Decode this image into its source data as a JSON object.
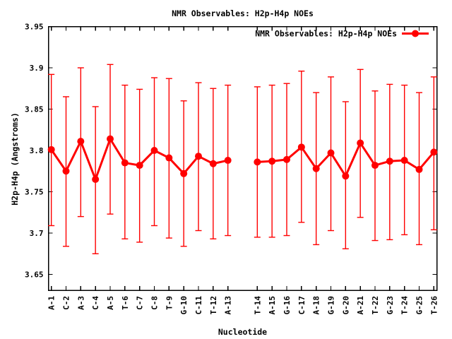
{
  "title": "NMR Observables: H2p-H4p NOEs",
  "axes": {
    "xlabel": "Nucleotide",
    "ylabel": "H2p-H4p (Angstroms)"
  },
  "legend": {
    "label": "NMR Observables: H2p-H4p NOEs",
    "position": "top-right-inside",
    "marker": "filled-circle-on-line",
    "color": "#ff0000"
  },
  "colors": {
    "series": "#ff0000",
    "axis": "#000000",
    "background": "#ffffff"
  },
  "chart_data": {
    "type": "line",
    "title": "NMR Observables: H2p-H4p NOEs",
    "xlabel": "Nucleotide",
    "ylabel": "H2p-H4p (Angstroms)",
    "series_name": "NMR Observables: H2p-H4p NOEs",
    "series_color": "#ff0000",
    "grid": false,
    "error_bars": true,
    "legend_position": "top-right-inside",
    "ylim": [
      3.6308,
      3.95
    ],
    "yticks": [
      3.95,
      3.9,
      3.85,
      3.8,
      3.75,
      3.7,
      3.65
    ],
    "ytick_labels": [
      "3.95",
      "3.9",
      "3.85",
      "3.8",
      "3.75",
      "3.7",
      "3.65"
    ],
    "categories": [
      "A-1",
      "C-2",
      "A-3",
      "C-4",
      "A-5",
      "T-6",
      "C-7",
      "C-8",
      "T-9",
      "G-10",
      "C-11",
      "T-12",
      "A-13",
      "T-14",
      "A-15",
      "G-16",
      "C-17",
      "A-18",
      "G-19",
      "G-20",
      "A-21",
      "T-22",
      "G-23",
      "T-24",
      "G-25",
      "T-26"
    ],
    "values": [
      3.801,
      3.775,
      3.811,
      3.765,
      3.814,
      3.785,
      3.782,
      3.8,
      3.791,
      3.772,
      3.793,
      3.784,
      3.788,
      3.786,
      3.787,
      3.789,
      3.804,
      3.778,
      3.797,
      3.769,
      3.809,
      3.782,
      3.787,
      3.788,
      3.777,
      3.798
    ],
    "error_low": [
      3.709,
      3.684,
      3.72,
      3.675,
      3.723,
      3.693,
      3.689,
      3.709,
      3.694,
      3.684,
      3.703,
      3.693,
      3.697,
      3.695,
      3.695,
      3.697,
      3.713,
      3.686,
      3.703,
      3.681,
      3.719,
      3.691,
      3.692,
      3.698,
      3.686,
      3.704
    ],
    "error_high": [
      3.892,
      3.865,
      3.9,
      3.853,
      3.904,
      3.879,
      3.874,
      3.888,
      3.887,
      3.86,
      3.882,
      3.875,
      3.879,
      3.877,
      3.879,
      3.881,
      3.896,
      3.87,
      3.889,
      3.859,
      3.898,
      3.872,
      3.88,
      3.879,
      3.87,
      3.889
    ],
    "line_break_after_index": 12,
    "x_gap_units_at_break": 2
  }
}
